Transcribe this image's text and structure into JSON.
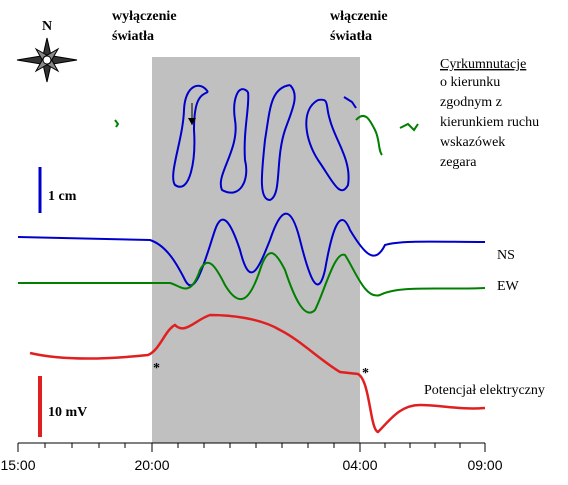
{
  "labels": {
    "light_off": [
      "wyłączenie",
      "światła"
    ],
    "light_on": [
      "włączenie",
      "światła"
    ],
    "legend": [
      "Cyrkumnutacje",
      "o kierunku",
      "zgodnym z",
      "kierunkiem ruchu",
      "wskazówek",
      "zegara"
    ],
    "scale_cm": "1 cm",
    "scale_mv": "10 mV",
    "ns": "NS",
    "ew": "EW",
    "potential": "Potencjał elektryczny",
    "compass": "N",
    "asterisks": [
      "*",
      "*"
    ]
  },
  "time_axis": [
    "15:00",
    "20:00",
    "04:00",
    "09:00"
  ]
}
